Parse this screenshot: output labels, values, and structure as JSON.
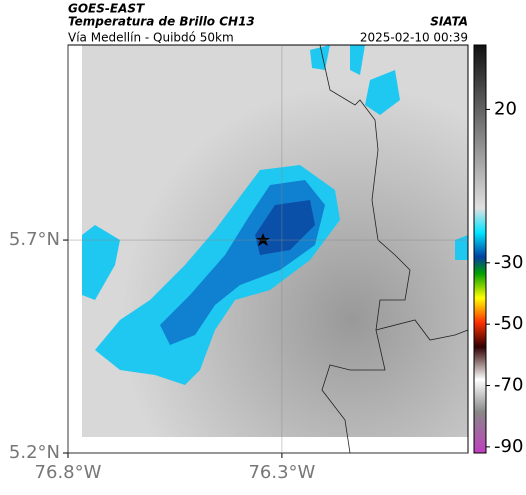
{
  "header": {
    "satellite": "GOES-EAST",
    "product": "Temperatura de Brillo CH13",
    "source": "SIATA",
    "location": "Vía Medellín - Quibdó 50km",
    "datetime": "2025-02-10 00:39"
  },
  "map": {
    "xlim": [
      -76.8,
      -75.865
    ],
    "ylim": [
      5.2,
      6.158
    ],
    "xticks": [
      {
        "value": -76.8,
        "label": "76.8°W"
      },
      {
        "value": -76.3,
        "label": "76.3°W"
      }
    ],
    "yticks": [
      {
        "value": 5.7,
        "label": "5.7°N"
      },
      {
        "value": 5.2,
        "label": "5.2°N"
      }
    ]
  },
  "colorbar": {
    "lim": [
      -92,
      41
    ],
    "ticks": [
      20,
      -30,
      -50,
      -70,
      -90
    ]
  }
}
